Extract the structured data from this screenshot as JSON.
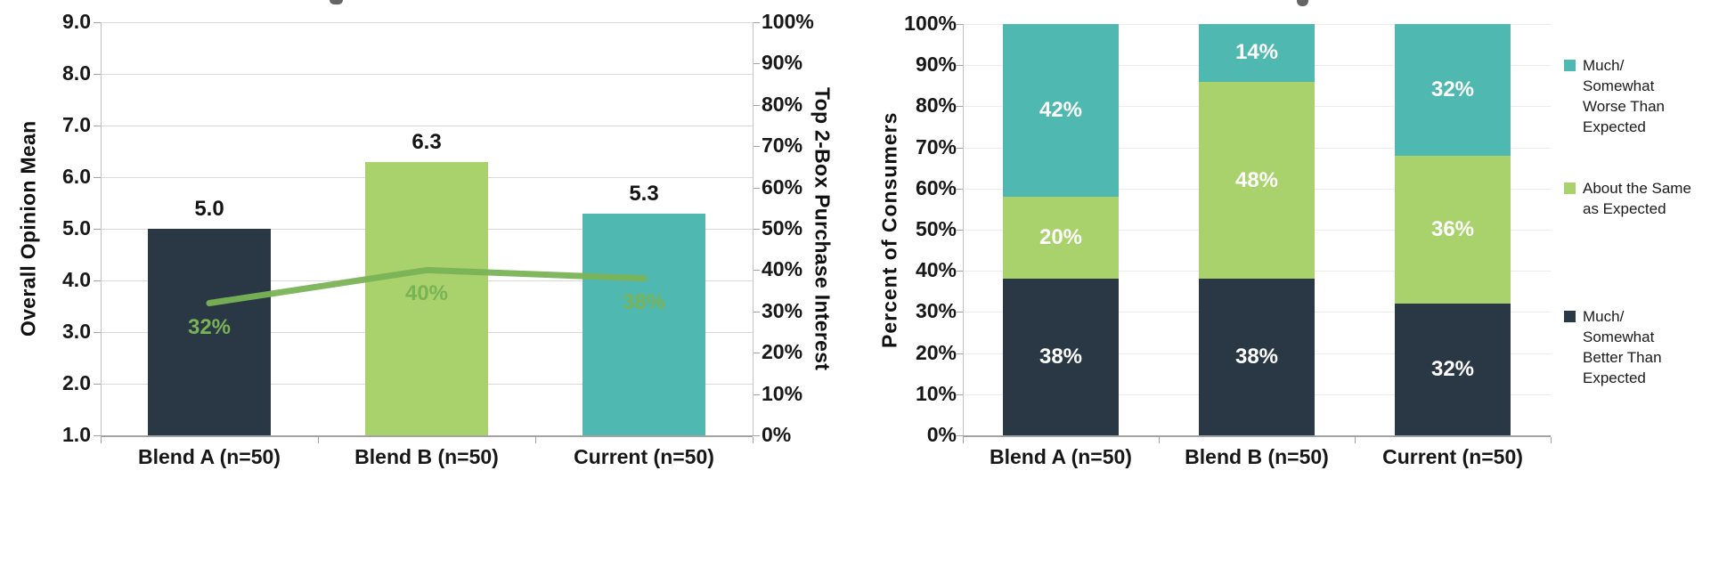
{
  "colors": {
    "navy": "#2a3845",
    "green": "#a9d16c",
    "teal": "#4fb8b0",
    "line_green": "#79b356",
    "grid": "#d9d9d9",
    "grid_light": "#ececec",
    "axis": "#a3a3a3"
  },
  "chart_data": [
    {
      "id": "overall-opinion-combo",
      "type": "bar",
      "subtype": "bar-line-combo",
      "categories": [
        "Blend A (n=50)",
        "Blend B (n=50)",
        "Current (n=50)"
      ],
      "series": [
        {
          "name": "Overall Opinion Mean",
          "role": "bar",
          "values": [
            5.0,
            6.3,
            5.3
          ],
          "labels": [
            "5.0",
            "6.3",
            "5.3"
          ],
          "colors": [
            "#2a3845",
            "#a9d16c",
            "#4fb8b0"
          ],
          "axis": "left"
        },
        {
          "name": "Top 2-Box Purchase Interest",
          "role": "line",
          "values": [
            32,
            40,
            38
          ],
          "labels": [
            "32%",
            "40%",
            "38%"
          ],
          "color": "#79b356",
          "axis": "right"
        }
      ],
      "left_axis": {
        "label": "Overall Opinion Mean",
        "min": 1,
        "max": 9,
        "ticks": [
          "9.0",
          "8.0",
          "7.0",
          "6.0",
          "5.0",
          "4.0",
          "3.0",
          "2.0",
          "1.0"
        ]
      },
      "right_axis": {
        "label": "Top 2-Box Purchase Interest",
        "min": 0,
        "max": 100,
        "ticks": [
          "100%",
          "90%",
          "80%",
          "70%",
          "60%",
          "50%",
          "40%",
          "30%",
          "20%",
          "10%",
          "0%"
        ]
      },
      "grid": true,
      "legend": "none"
    },
    {
      "id": "expectations-stacked",
      "type": "bar",
      "subtype": "stacked-100",
      "categories": [
        "Blend A (n=50)",
        "Blend B (n=50)",
        "Current (n=50)"
      ],
      "series": [
        {
          "name": "Much/Somewhat Better Than Expected",
          "color": "#2a3845",
          "values": [
            38,
            38,
            32
          ],
          "labels": [
            "38%",
            "38%",
            "32%"
          ]
        },
        {
          "name": "About the Same as Expected",
          "color": "#a9d16c",
          "values": [
            20,
            48,
            36
          ],
          "labels": [
            "20%",
            "48%",
            "36%"
          ]
        },
        {
          "name": "Much/Somewhat Worse Than Expected",
          "color": "#4fb8b0",
          "values": [
            42,
            14,
            32
          ],
          "labels": [
            "42%",
            "14%",
            "32%"
          ]
        }
      ],
      "y_axis": {
        "label": "Percent of Consumers",
        "min": 0,
        "max": 100,
        "ticks": [
          "100%",
          "90%",
          "80%",
          "70%",
          "60%",
          "50%",
          "40%",
          "30%",
          "20%",
          "10%",
          "0%"
        ]
      },
      "grid": true,
      "legend_position": "right",
      "legend": [
        {
          "swatch": "#4fb8b0",
          "text": "Much/\nSomewhat\nWorse Than\nExpected"
        },
        {
          "swatch": "#a9d16c",
          "text": "About the Same\nas Expected"
        },
        {
          "swatch": "#2a3845",
          "text": "Much/\nSomewhat\nBetter Than\nExpected"
        }
      ]
    }
  ]
}
